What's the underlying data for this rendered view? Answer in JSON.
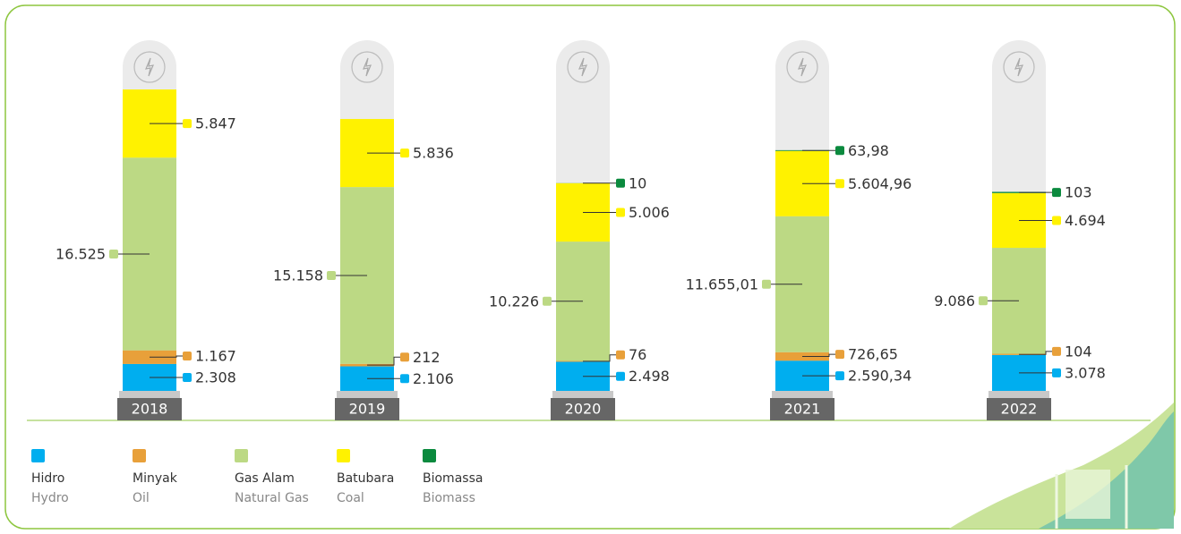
{
  "chart_data": {
    "type": "bar",
    "stacked": true,
    "categories": [
      "2018",
      "2019",
      "2020",
      "2021",
      "2022"
    ],
    "series": [
      {
        "name": "Hidro",
        "name_en": "Hydro",
        "color": "#00aeef",
        "values": [
          2308,
          2106,
          2498,
          2590.34,
          3078
        ],
        "value_labels": [
          "2.308",
          "2.106",
          "2.498",
          "2.590,34",
          "3.078"
        ]
      },
      {
        "name": "Minyak",
        "name_en": "Oil",
        "color": "#e8a03a",
        "values": [
          1167,
          212,
          76,
          726.65,
          104
        ],
        "value_labels": [
          "1.167",
          "212",
          "76",
          "726,65",
          "104"
        ]
      },
      {
        "name": "Gas Alam",
        "name_en": "Natural Gas",
        "color": "#bcd984",
        "values": [
          16525,
          15158,
          10226,
          11655.01,
          9086
        ],
        "value_labels": [
          "16.525",
          "15.158",
          "10.226",
          "11.655,01",
          "9.086"
        ]
      },
      {
        "name": "Batubara",
        "name_en": "Coal",
        "color": "#fff200",
        "values": [
          5847,
          5836,
          5006,
          5604.96,
          4694
        ],
        "value_labels": [
          "5.847",
          "5.836",
          "5.006",
          "5.604,96",
          "4.694"
        ]
      },
      {
        "name": "Biomassa",
        "name_en": "Biomass",
        "color": "#0b8a3e",
        "values": [
          null,
          null,
          10,
          63.98,
          103
        ],
        "value_labels": [
          null,
          null,
          "10",
          "63,98",
          "103"
        ]
      }
    ]
  }
}
